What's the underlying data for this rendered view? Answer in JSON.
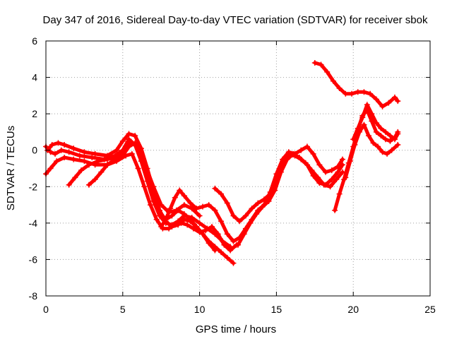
{
  "chart_data": {
    "type": "scatter",
    "title": "Day 347 of 2016, Sidereal Day-to-day VTEC variation (SDTVAR) for receiver sbok",
    "xlabel": "GPS time / hours",
    "ylabel": "SDTVAR / TECUs",
    "xlim": [
      0,
      25
    ],
    "ylim": [
      -8,
      6
    ],
    "xticks": [
      0,
      5,
      10,
      15,
      20,
      25
    ],
    "yticks": [
      -8,
      -6,
      -4,
      -2,
      0,
      2,
      4,
      6
    ],
    "grid": true,
    "marker": "+",
    "color": "#ff0000",
    "series": [
      {
        "x": [
          0.1,
          0.4,
          0.8,
          1.2,
          1.8,
          2.5,
          3.2,
          4.0,
          4.6,
          5.0,
          5.4,
          5.8,
          6.2,
          6.6,
          7.0,
          7.4,
          7.8,
          8.2,
          8.6,
          9.0,
          9.4,
          9.8,
          10.2,
          10.6,
          11.0,
          11.4,
          11.8,
          12.2
        ],
        "y": [
          0.0,
          0.3,
          0.4,
          0.3,
          0.1,
          -0.1,
          -0.2,
          -0.3,
          0.0,
          0.5,
          0.9,
          0.8,
          0.1,
          -1.0,
          -2.2,
          -3.3,
          -3.9,
          -4.2,
          -4.1,
          -3.8,
          -3.9,
          -4.2,
          -4.6,
          -5.0,
          -5.3,
          -5.6,
          -5.9,
          -6.2
        ]
      },
      {
        "x": [
          0.0,
          0.3,
          0.6,
          1.0,
          1.5,
          2.2,
          3.0,
          3.8,
          4.5,
          5.0,
          5.4,
          5.8,
          6.2,
          6.6,
          7.0,
          7.4,
          7.8,
          8.2,
          8.6,
          9.0,
          9.5,
          10.0,
          10.5,
          11.0,
          11.5,
          12.0
        ],
        "y": [
          0.2,
          -0.1,
          -0.2,
          0.0,
          -0.1,
          -0.3,
          -0.4,
          -0.5,
          -0.3,
          0.0,
          0.6,
          0.3,
          -0.6,
          -1.7,
          -2.8,
          -3.6,
          -4.0,
          -4.1,
          -3.9,
          -3.6,
          -3.7,
          -4.0,
          -4.3,
          -4.6,
          -5.0,
          -5.3
        ]
      },
      {
        "x": [
          0.0,
          0.3,
          0.7,
          1.2,
          1.8,
          2.5,
          3.2,
          4.0,
          4.6,
          5.2,
          5.6,
          6.0,
          6.4,
          6.8,
          7.2,
          7.6,
          8.0,
          8.4,
          8.8,
          9.2,
          9.6,
          10.0,
          10.4,
          10.8,
          11.2,
          11.6,
          12.0,
          12.4
        ],
        "y": [
          -1.3,
          -1.0,
          -0.6,
          -0.4,
          -0.5,
          -0.6,
          -0.8,
          -0.8,
          -0.6,
          -0.3,
          -0.2,
          -1.0,
          -2.0,
          -3.0,
          -3.8,
          -4.3,
          -4.3,
          -4.1,
          -4.0,
          -4.1,
          -4.3,
          -4.5,
          -4.4,
          -4.2,
          -4.6,
          -5.2,
          -5.5,
          -5.2
        ]
      },
      {
        "x": [
          1.5,
          1.9,
          2.3,
          2.8,
          3.4,
          4.0,
          4.5,
          5.0,
          5.4,
          5.8,
          6.2,
          6.6,
          7.0,
          7.4,
          7.8,
          8.2,
          8.6,
          9.0,
          9.4,
          9.8,
          10.2,
          10.6,
          11.0
        ],
        "y": [
          -1.9,
          -1.5,
          -1.1,
          -0.8,
          -0.6,
          -0.5,
          -0.4,
          -0.3,
          0.2,
          0.4,
          -0.3,
          -1.4,
          -2.6,
          -3.4,
          -3.8,
          -3.6,
          -3.3,
          -3.5,
          -3.8,
          -4.2,
          -4.6,
          -5.1,
          -5.5
        ]
      },
      {
        "x": [
          2.8,
          3.2,
          3.6,
          4.0,
          4.5,
          5.0,
          5.5,
          6.0,
          6.5,
          7.0,
          7.5,
          8.0,
          8.5,
          9.0,
          9.5,
          10.0
        ],
        "y": [
          -1.9,
          -1.6,
          -1.2,
          -0.8,
          -0.5,
          -0.1,
          0.4,
          0.2,
          -0.9,
          -2.0,
          -3.0,
          -3.4,
          -3.3,
          -3.0,
          -3.2,
          -3.6
        ]
      },
      {
        "x": [
          7.5,
          7.8,
          8.1,
          8.4,
          8.7,
          9.0,
          9.4,
          9.8,
          10.2,
          10.6,
          11.0,
          11.4,
          11.8,
          12.2,
          12.6,
          13.0,
          13.4,
          13.8,
          14.2,
          14.6,
          15.0,
          15.4,
          15.8,
          16.2,
          16.6,
          17.0,
          17.4,
          17.8,
          18.2,
          18.6,
          19.0,
          19.3
        ],
        "y": [
          -4.2,
          -3.8,
          -3.2,
          -2.6,
          -2.2,
          -2.5,
          -2.9,
          -3.2,
          -3.1,
          -3.0,
          -3.3,
          -3.9,
          -4.6,
          -5.0,
          -4.8,
          -4.3,
          -3.8,
          -3.3,
          -3.0,
          -2.3,
          -1.3,
          -0.5,
          -0.1,
          -0.2,
          0.0,
          0.2,
          -0.2,
          -0.8,
          -1.2,
          -1.1,
          -0.9,
          -0.5
        ]
      },
      {
        "x": [
          11.0,
          11.4,
          11.8,
          12.2,
          12.6,
          13.0,
          13.4,
          13.8,
          14.2,
          14.6,
          15.0,
          15.4,
          15.8,
          16.2,
          16.6,
          17.0,
          17.4,
          17.8,
          18.2,
          18.6,
          19.0,
          19.3
        ],
        "y": [
          -2.1,
          -2.4,
          -2.9,
          -3.6,
          -3.9,
          -3.6,
          -3.2,
          -2.9,
          -2.7,
          -2.4,
          -1.6,
          -0.8,
          -0.3,
          -0.3,
          -0.5,
          -0.8,
          -1.4,
          -1.8,
          -1.9,
          -1.6,
          -1.2,
          -0.8
        ]
      },
      {
        "x": [
          12.5,
          12.9,
          13.3,
          13.7,
          14.1,
          14.5,
          14.9,
          15.3,
          15.7,
          16.1,
          16.5,
          16.9,
          17.3,
          17.7,
          18.1,
          18.5,
          18.9,
          19.3
        ],
        "y": [
          -5.2,
          -4.6,
          -4.0,
          -3.5,
          -3.1,
          -2.8,
          -2.2,
          -1.2,
          -0.5,
          -0.2,
          -0.4,
          -0.7,
          -1.1,
          -1.5,
          -1.9,
          -2.0,
          -1.6,
          -1.2
        ]
      },
      {
        "x": [
          17.5,
          17.9,
          18.3,
          18.7,
          19.1,
          19.5,
          19.9,
          20.3,
          20.7,
          21.1,
          21.5,
          21.9,
          22.3,
          22.7,
          22.9
        ],
        "y": [
          4.8,
          4.7,
          4.3,
          3.8,
          3.4,
          3.1,
          3.1,
          3.2,
          3.2,
          3.1,
          2.8,
          2.4,
          2.6,
          2.9,
          2.7
        ]
      },
      {
        "x": [
          18.8,
          19.1,
          19.4,
          19.7,
          20.0,
          20.3,
          20.6,
          20.9,
          21.2,
          21.5,
          21.8,
          22.1,
          22.4,
          22.7,
          22.9
        ],
        "y": [
          -3.3,
          -2.4,
          -1.6,
          -0.7,
          0.2,
          1.1,
          1.9,
          2.2,
          1.6,
          1.0,
          0.8,
          0.6,
          0.5,
          0.7,
          1.0
        ]
      },
      {
        "x": [
          19.5,
          19.8,
          20.1,
          20.4,
          20.7,
          21.0,
          21.3,
          21.6,
          21.9,
          22.2,
          22.5,
          22.9
        ],
        "y": [
          -1.5,
          -0.6,
          0.3,
          1.0,
          1.4,
          0.8,
          0.4,
          0.2,
          -0.1,
          -0.2,
          0.0,
          0.3
        ]
      },
      {
        "x": [
          20.0,
          20.3,
          20.6,
          20.9,
          21.2,
          21.5,
          21.8,
          22.1,
          22.4,
          22.7,
          22.9
        ],
        "y": [
          0.6,
          1.2,
          1.8,
          2.5,
          2.0,
          1.5,
          1.2,
          1.0,
          0.8,
          0.6,
          0.9
        ]
      }
    ]
  }
}
